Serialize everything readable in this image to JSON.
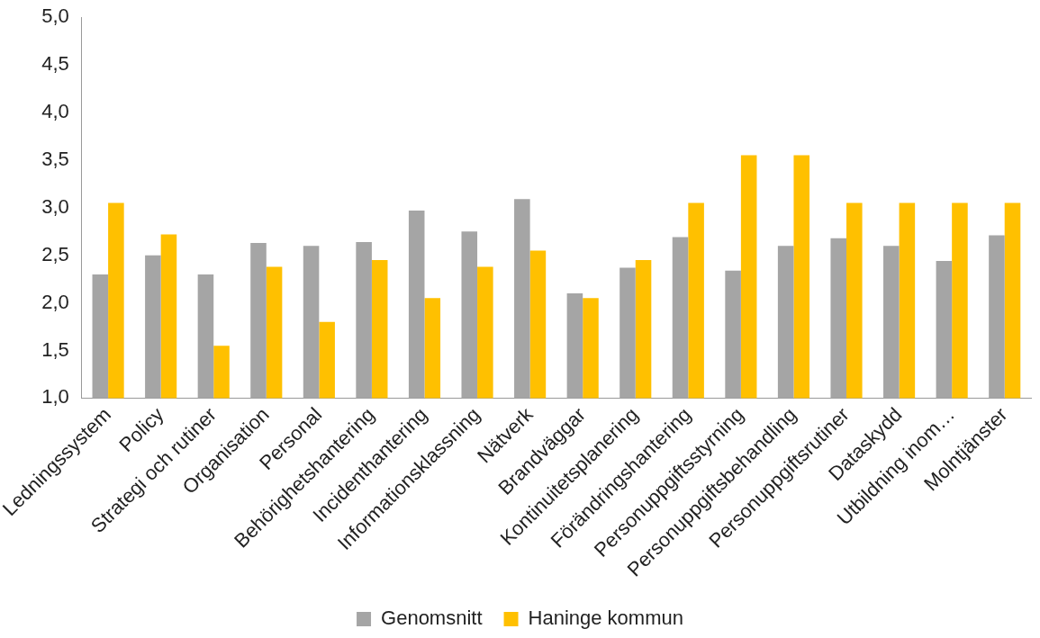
{
  "chart_data": {
    "type": "bar",
    "categories": [
      "Ledningssystem",
      "Policy",
      "Strategi och rutiner",
      "Organisation",
      "Personal",
      "Behörighetshantering",
      "Incidenthantering",
      "Informationsklassning",
      "Nätverk",
      "Brandväggar",
      "Kontinuitetsplanering",
      "Förändringshantering",
      "Personuppgiftsstyrning",
      "Personuppgiftsbehandling",
      "Personuppgiftsrutiner",
      "Dataskydd",
      "Utbildning inom…",
      "Molntjänster"
    ],
    "series": [
      {
        "name": "Genomsnitt",
        "color": "#a5a5a5",
        "values": [
          2.3,
          2.5,
          2.3,
          2.63,
          2.6,
          2.64,
          2.97,
          2.75,
          3.09,
          2.1,
          2.37,
          2.69,
          2.34,
          2.6,
          2.68,
          2.6,
          2.44,
          2.71
        ]
      },
      {
        "name": "Haninge kommun",
        "color": "#ffc000",
        "values": [
          3.05,
          2.72,
          1.55,
          2.38,
          1.8,
          2.45,
          2.05,
          2.38,
          2.55,
          2.05,
          2.45,
          3.05,
          3.55,
          3.55,
          3.05,
          3.05,
          3.05,
          3.05
        ]
      }
    ],
    "ylim": [
      1,
      5
    ],
    "yticks": [
      {
        "value": 1,
        "label": "1,0"
      },
      {
        "value": 1.5,
        "label": "1,5"
      },
      {
        "value": 2,
        "label": "2,0"
      },
      {
        "value": 2.5,
        "label": "2,5"
      },
      {
        "value": 3,
        "label": "3,0"
      },
      {
        "value": 3.5,
        "label": "3,5"
      },
      {
        "value": 4,
        "label": "4,0"
      },
      {
        "value": 4.5,
        "label": "4,5"
      },
      {
        "value": 5,
        "label": "5,0"
      }
    ],
    "grid": false,
    "legend": "bottom"
  }
}
